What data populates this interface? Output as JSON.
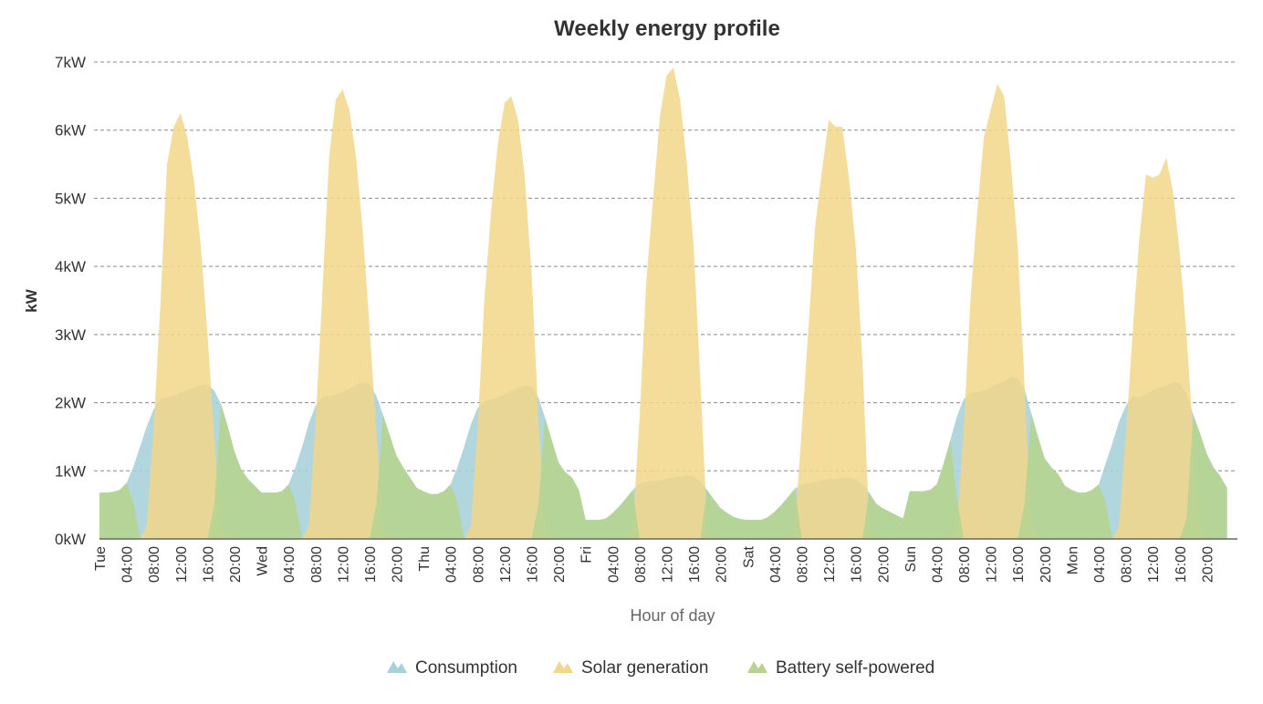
{
  "chart_data": {
    "type": "area",
    "title": "Weekly energy profile",
    "xlabel": "Hour of day",
    "ylabel": "kW",
    "x_step_hours": 1,
    "y_ticks": [
      "0kW",
      "1kW",
      "2kW",
      "3kW",
      "4kW",
      "5kW",
      "6kW",
      "7kW"
    ],
    "ylim": [
      0,
      7
    ],
    "x_ticks": [
      {
        "h": 0,
        "label": "Tue"
      },
      {
        "h": 4,
        "label": "04:00"
      },
      {
        "h": 8,
        "label": "08:00"
      },
      {
        "h": 12,
        "label": "12:00"
      },
      {
        "h": 16,
        "label": "16:00"
      },
      {
        "h": 20,
        "label": "20:00"
      },
      {
        "h": 24,
        "label": "Wed"
      },
      {
        "h": 28,
        "label": "04:00"
      },
      {
        "h": 32,
        "label": "08:00"
      },
      {
        "h": 36,
        "label": "12:00"
      },
      {
        "h": 40,
        "label": "16:00"
      },
      {
        "h": 44,
        "label": "20:00"
      },
      {
        "h": 48,
        "label": "Thu"
      },
      {
        "h": 52,
        "label": "04:00"
      },
      {
        "h": 56,
        "label": "08:00"
      },
      {
        "h": 60,
        "label": "12:00"
      },
      {
        "h": 64,
        "label": "16:00"
      },
      {
        "h": 68,
        "label": "20:00"
      },
      {
        "h": 72,
        "label": "Fri"
      },
      {
        "h": 76,
        "label": "04:00"
      },
      {
        "h": 80,
        "label": "08:00"
      },
      {
        "h": 84,
        "label": "12:00"
      },
      {
        "h": 88,
        "label": "16:00"
      },
      {
        "h": 92,
        "label": "20:00"
      },
      {
        "h": 96,
        "label": "Sat"
      },
      {
        "h": 100,
        "label": "04:00"
      },
      {
        "h": 104,
        "label": "08:00"
      },
      {
        "h": 108,
        "label": "12:00"
      },
      {
        "h": 112,
        "label": "16:00"
      },
      {
        "h": 116,
        "label": "20:00"
      },
      {
        "h": 120,
        "label": "Sun"
      },
      {
        "h": 124,
        "label": "04:00"
      },
      {
        "h": 128,
        "label": "08:00"
      },
      {
        "h": 132,
        "label": "12:00"
      },
      {
        "h": 136,
        "label": "16:00"
      },
      {
        "h": 140,
        "label": "20:00"
      },
      {
        "h": 144,
        "label": "Mon"
      },
      {
        "h": 148,
        "label": "04:00"
      },
      {
        "h": 152,
        "label": "08:00"
      },
      {
        "h": 156,
        "label": "12:00"
      },
      {
        "h": 160,
        "label": "16:00"
      },
      {
        "h": 164,
        "label": "20:00"
      }
    ],
    "grid": true,
    "legend_position": "bottom-center",
    "series": [
      {
        "name": "Consumption",
        "color": "#a8d1d9",
        "values": [
          0.68,
          0.68,
          0.69,
          0.72,
          0.82,
          1.05,
          1.35,
          1.65,
          1.9,
          2.05,
          2.08,
          2.1,
          2.15,
          2.18,
          2.22,
          2.25,
          2.26,
          2.18,
          1.98,
          1.65,
          1.28,
          1.02,
          0.88,
          0.78,
          0.68,
          0.68,
          0.68,
          0.7,
          0.8,
          1.05,
          1.35,
          1.7,
          1.95,
          2.08,
          2.1,
          2.12,
          2.15,
          2.2,
          2.26,
          2.3,
          2.28,
          2.1,
          1.82,
          1.52,
          1.22,
          1.05,
          0.9,
          0.75,
          0.7,
          0.66,
          0.66,
          0.7,
          0.8,
          1.05,
          1.35,
          1.68,
          1.92,
          2.02,
          2.05,
          2.08,
          2.12,
          2.18,
          2.22,
          2.25,
          2.24,
          2.08,
          1.78,
          1.45,
          1.12,
          0.98,
          0.9,
          0.72,
          0.28,
          0.28,
          0.28,
          0.3,
          0.38,
          0.48,
          0.6,
          0.72,
          0.82,
          0.84,
          0.85,
          0.86,
          0.88,
          0.9,
          0.92,
          0.93,
          0.92,
          0.85,
          0.72,
          0.58,
          0.45,
          0.38,
          0.32,
          0.29,
          0.28,
          0.28,
          0.28,
          0.32,
          0.4,
          0.5,
          0.62,
          0.74,
          0.8,
          0.82,
          0.84,
          0.86,
          0.88,
          0.88,
          0.9,
          0.9,
          0.88,
          0.8,
          0.68,
          0.52,
          0.45,
          0.4,
          0.35,
          0.3,
          0.7,
          0.7,
          0.7,
          0.72,
          0.8,
          1.1,
          1.45,
          1.8,
          2.05,
          2.15,
          2.15,
          2.18,
          2.22,
          2.28,
          2.32,
          2.38,
          2.36,
          2.2,
          1.85,
          1.5,
          1.18,
          1.05,
          0.95,
          0.78,
          0.72,
          0.68,
          0.68,
          0.72,
          0.8,
          1.1,
          1.4,
          1.72,
          1.95,
          2.1,
          2.08,
          2.12,
          2.18,
          2.22,
          2.25,
          2.3,
          2.3,
          2.12,
          1.82,
          1.55,
          1.25,
          1.05,
          0.92,
          0.75
        ]
      },
      {
        "name": "Solar generation",
        "color": "#f2d68a",
        "values": [
          0,
          0,
          0,
          0,
          0,
          0,
          0,
          0.2,
          1.6,
          3.4,
          5.5,
          6.05,
          6.25,
          5.9,
          5.25,
          4.3,
          3,
          1.5,
          0.2,
          0,
          0,
          0,
          0,
          0,
          0,
          0,
          0,
          0,
          0,
          0,
          0,
          0.2,
          1.7,
          3.6,
          5.6,
          6.45,
          6.6,
          6.3,
          5.6,
          4.5,
          3.1,
          1.6,
          0.2,
          0,
          0,
          0,
          0,
          0,
          0,
          0,
          0,
          0,
          0,
          0,
          0,
          0.2,
          1.6,
          3.5,
          4.8,
          5.8,
          6.4,
          6.5,
          6.15,
          5.3,
          3.9,
          1.8,
          0.2,
          0,
          0,
          0,
          0,
          0,
          0,
          0,
          0,
          0,
          0,
          0,
          0,
          0.2,
          1.8,
          3.8,
          5.0,
          6.2,
          6.8,
          6.92,
          6.45,
          5.5,
          4.3,
          2.3,
          0.2,
          0,
          0,
          0,
          0,
          0,
          0,
          0,
          0,
          0,
          0,
          0,
          0,
          0.2,
          1.6,
          3.1,
          4.6,
          5.4,
          6.15,
          6.05,
          6.05,
          5.3,
          4.3,
          2.6,
          0.2,
          0,
          0,
          0,
          0,
          0,
          0,
          0,
          0,
          0,
          0,
          0,
          0,
          0.2,
          1.6,
          3.5,
          4.8,
          5.9,
          6.3,
          6.68,
          6.5,
          5.5,
          4.3,
          2.3,
          0.2,
          0,
          0,
          0,
          0,
          0,
          0,
          0,
          0,
          0,
          0,
          0,
          0,
          0.2,
          1.5,
          3.0,
          4.4,
          5.35,
          5.3,
          5.35,
          5.6,
          5.1,
          4.2,
          3.0,
          1.5,
          0.2,
          0,
          0,
          0,
          0
        ]
      },
      {
        "name": "Battery self-powered",
        "color": "#b6d490",
        "values": [
          0.68,
          0.68,
          0.69,
          0.72,
          0.82,
          0.55,
          0,
          0,
          0,
          0,
          0,
          0,
          0,
          0,
          0,
          0,
          0,
          0.5,
          1.98,
          1.65,
          1.28,
          1.02,
          0.88,
          0.78,
          0.68,
          0.68,
          0.68,
          0.7,
          0.8,
          0.55,
          0,
          0,
          0,
          0,
          0,
          0,
          0,
          0,
          0,
          0,
          0,
          0.5,
          1.82,
          1.52,
          1.22,
          1.05,
          0.9,
          0.75,
          0.7,
          0.66,
          0.66,
          0.7,
          0.8,
          0.55,
          0,
          0,
          0,
          0,
          0,
          0,
          0,
          0,
          0,
          0,
          0,
          0.5,
          1.78,
          1.45,
          1.12,
          0.98,
          0.9,
          0.72,
          0.28,
          0.28,
          0.28,
          0.3,
          0.38,
          0.48,
          0.6,
          0.72,
          0,
          0,
          0,
          0,
          0,
          0,
          0,
          0,
          0,
          0,
          0.72,
          0.58,
          0.45,
          0.38,
          0.32,
          0.29,
          0.28,
          0.28,
          0.28,
          0.32,
          0.4,
          0.5,
          0.62,
          0.74,
          0,
          0,
          0,
          0,
          0,
          0,
          0,
          0,
          0,
          0,
          0.68,
          0.52,
          0.45,
          0.4,
          0.35,
          0.3,
          0.7,
          0.7,
          0.7,
          0.72,
          0.8,
          1.1,
          1.45,
          0.6,
          0,
          0,
          0,
          0,
          0,
          0,
          0,
          0,
          0,
          0.5,
          1.85,
          1.5,
          1.18,
          1.05,
          0.95,
          0.78,
          0.72,
          0.68,
          0.68,
          0.72,
          0.8,
          0.55,
          0,
          0,
          0,
          0,
          0,
          0,
          0,
          0,
          0,
          0,
          0,
          0.3,
          1.82,
          1.55,
          1.25,
          1.05,
          0.92,
          0.75
        ]
      }
    ]
  }
}
